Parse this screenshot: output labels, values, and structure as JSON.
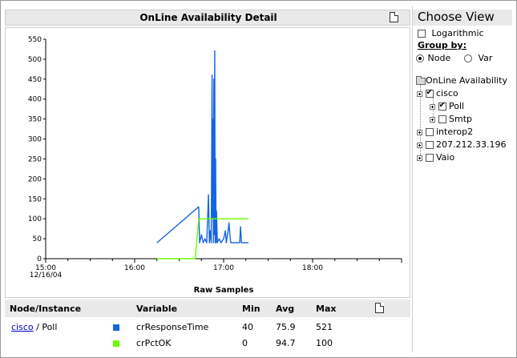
{
  "panel_title": "OnLine Availability Detail",
  "choose_view": {
    "title": "Choose View",
    "logarithmic_label": "Logarithmic",
    "logarithmic_checked": false,
    "group_by_label": "Group by:",
    "group_by_options": [
      "Node",
      "Var"
    ],
    "group_by_selected": "Node"
  },
  "tree": {
    "root": "OnLine Availability",
    "nodes": [
      {
        "label": "cisco",
        "checked": true,
        "children": [
          {
            "label": "Poll",
            "checked": true
          },
          {
            "label": "Smtp",
            "checked": false
          }
        ]
      },
      {
        "label": "interop2",
        "checked": false
      },
      {
        "label": "207.212.33.196",
        "checked": false
      },
      {
        "label": "Vaio",
        "checked": false
      }
    ]
  },
  "table": {
    "headers": {
      "node": "Node/Instance",
      "variable": "Variable",
      "min": "Min",
      "avg": "Avg",
      "max": "Max"
    },
    "rows": [
      {
        "node_link": "cisco",
        "node_suffix": " / Poll",
        "color": "#1464e6",
        "variable": "crResponseTime",
        "min": "40",
        "avg": "75.9",
        "max": "521"
      },
      {
        "node_link": "",
        "node_suffix": "",
        "color": "#66ff00",
        "variable": "crPctOK",
        "min": "0",
        "avg": "94.7",
        "max": "100"
      }
    ]
  },
  "chart_data": {
    "type": "line",
    "xlabel": "Raw Samples",
    "ylabel": "",
    "ylim": [
      0,
      550
    ],
    "yticks": [
      0,
      50,
      100,
      150,
      200,
      250,
      300,
      350,
      400,
      450,
      500,
      550
    ],
    "xticks": [
      {
        "h": 15.0,
        "label": "15:00",
        "sublabel": "12/16/04"
      },
      {
        "h": 16.0,
        "label": "16:00",
        "sublabel": ""
      },
      {
        "h": 17.0,
        "label": "17:00",
        "sublabel": ""
      },
      {
        "h": 18.0,
        "label": "18:00",
        "sublabel": ""
      }
    ],
    "xlim": [
      15.0,
      19.0
    ],
    "grid": false,
    "series": [
      {
        "name": "crResponseTime",
        "color": "#1464e6",
        "points": [
          [
            16.25,
            40
          ],
          [
            16.72,
            130
          ],
          [
            16.73,
            40
          ],
          [
            16.75,
            60
          ],
          [
            16.77,
            40
          ],
          [
            16.79,
            50
          ],
          [
            16.81,
            40
          ],
          [
            16.83,
            160
          ],
          [
            16.84,
            40
          ],
          [
            16.85,
            70
          ],
          [
            16.86,
            40
          ],
          [
            16.87,
            460
          ],
          [
            16.875,
            100
          ],
          [
            16.88,
            350
          ],
          [
            16.885,
            40
          ],
          [
            16.89,
            450
          ],
          [
            16.895,
            60
          ],
          [
            16.9,
            521
          ],
          [
            16.905,
            40
          ],
          [
            16.91,
            250
          ],
          [
            16.915,
            40
          ],
          [
            16.92,
            120
          ],
          [
            16.93,
            40
          ],
          [
            16.95,
            50
          ],
          [
            16.97,
            40
          ],
          [
            17.0,
            50
          ],
          [
            17.02,
            70
          ],
          [
            17.03,
            40
          ],
          [
            17.05,
            70
          ],
          [
            17.06,
            90
          ],
          [
            17.07,
            60
          ],
          [
            17.08,
            40
          ],
          [
            17.12,
            40
          ],
          [
            17.18,
            40
          ],
          [
            17.19,
            80
          ],
          [
            17.2,
            40
          ],
          [
            17.28,
            40
          ]
        ]
      },
      {
        "name": "crPctOK",
        "color": "#66ff00",
        "points": [
          [
            16.25,
            0
          ],
          [
            16.68,
            0
          ],
          [
            16.72,
            100
          ],
          [
            17.28,
            100
          ]
        ]
      }
    ]
  }
}
